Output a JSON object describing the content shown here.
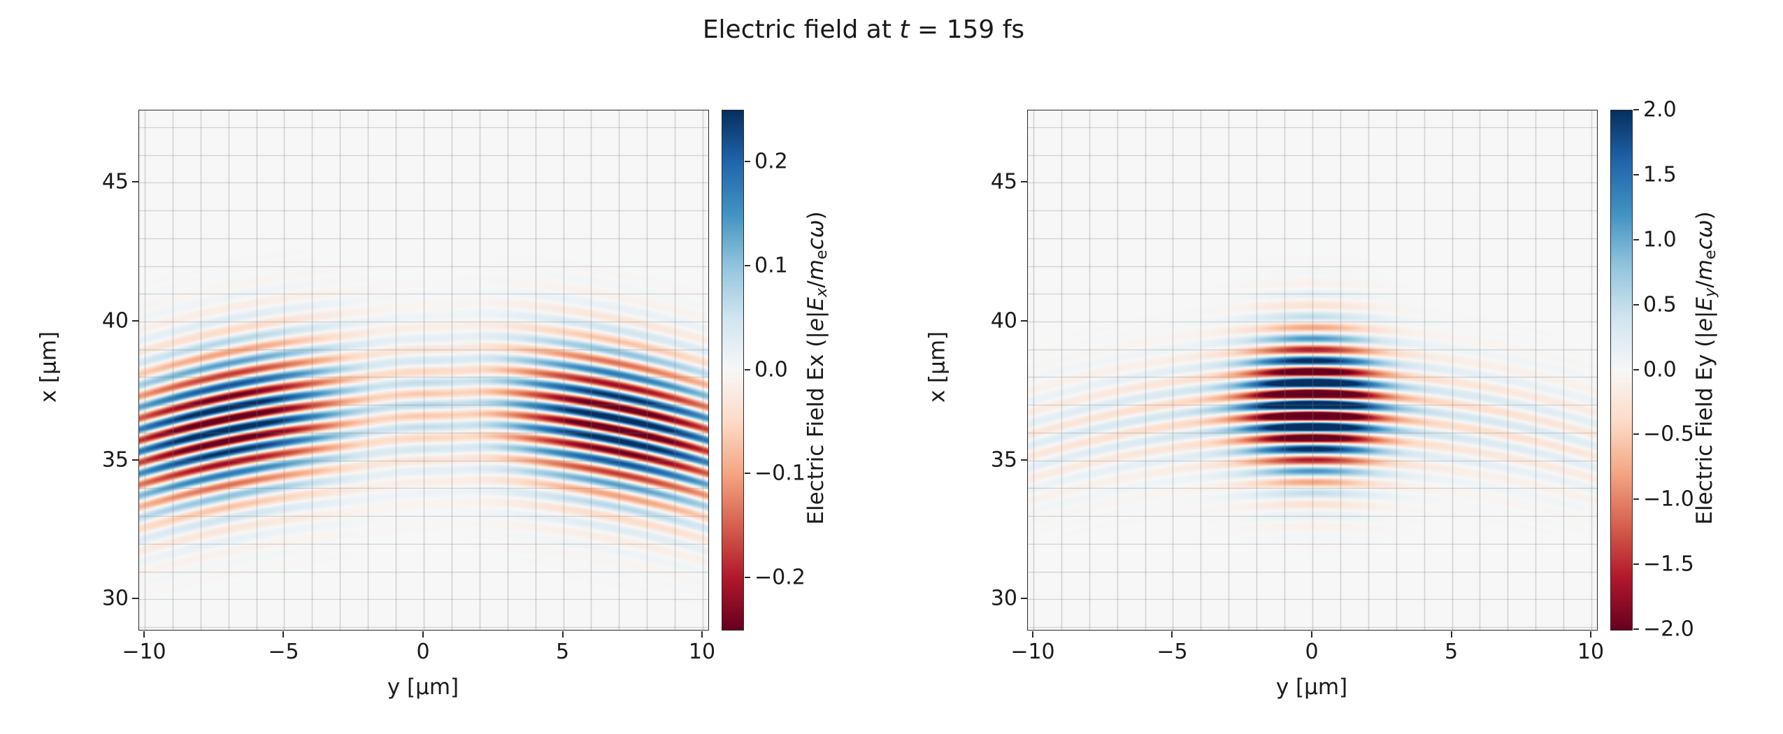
{
  "title": {
    "text": "Electric field at t = 159 fs",
    "time_fs": 159,
    "segments": [
      {
        "t": "Electric field at "
      },
      {
        "t": "t",
        "i": true
      },
      {
        "t": " = 159 fs"
      }
    ]
  },
  "colormap": {
    "name": "RdBu",
    "stops": [
      [
        103,
        0,
        31
      ],
      [
        178,
        24,
        43
      ],
      [
        214,
        96,
        77
      ],
      [
        244,
        165,
        130
      ],
      [
        253,
        219,
        199
      ],
      [
        247,
        247,
        247
      ],
      [
        209,
        229,
        240
      ],
      [
        146,
        197,
        222
      ],
      [
        67,
        147,
        195
      ],
      [
        33,
        102,
        172
      ],
      [
        5,
        48,
        97
      ]
    ]
  },
  "chart_data": [
    {
      "type": "heatmap",
      "name": "Ex",
      "xlabel": "y [μm]",
      "ylabel": "x [μm]",
      "xlim": [
        -10.2,
        10.2
      ],
      "ylim": [
        28.9,
        47.6
      ],
      "xticks": {
        "values": [
          -10,
          -5,
          0,
          5,
          10
        ],
        "labels": [
          "−10",
          "−5",
          "0",
          "5",
          "10"
        ]
      },
      "yticks": {
        "values": [
          30,
          35,
          40,
          45
        ],
        "labels": [
          "30",
          "35",
          "40",
          "45"
        ]
      },
      "grid": {
        "step": 1,
        "color": "rgba(128,128,128,0.4)"
      },
      "colorbar": {
        "vmin": -0.25,
        "vmax": 0.25,
        "ticks": {
          "values": [
            0.2,
            0.1,
            0.0,
            -0.1,
            -0.2
          ],
          "labels": [
            "0.2",
            "0.1",
            "0.0",
            "−0.1",
            "−0.2"
          ]
        },
        "label_text": "Electric Field Ex (|e|Ex/mecω)",
        "label_segments": [
          {
            "t": "Electric Field Ex (|"
          },
          {
            "t": "e",
            "i": true
          },
          {
            "t": "|"
          },
          {
            "t": "E",
            "i": true
          },
          {
            "t": "x",
            "i": true,
            "s": true
          },
          {
            "t": "/"
          },
          {
            "t": "m",
            "i": true
          },
          {
            "t": "e",
            "s": true
          },
          {
            "t": "c",
            "i": true
          },
          {
            "t": "ω",
            "i": true
          },
          {
            "t": ")"
          }
        ]
      },
      "field_model": {
        "component": "Ex",
        "description": "Transverse-gradient (longitudinal) field of focused laser pulse: antisymmetric two-lobe pattern in y, curved wavefronts",
        "lambda": 0.8,
        "xc": 37.0,
        "R": 35,
        "amp": 0.3,
        "tanhW": 2.5,
        "lobeY": 7.0,
        "lobeS": 4.5,
        "envSx": 2.5,
        "cenAmp": 0.07,
        "cenSy": 2.5,
        "cenSx": 2.3
      }
    },
    {
      "type": "heatmap",
      "name": "Ey",
      "xlabel": "y [μm]",
      "ylabel": "x [μm]",
      "xlim": [
        -10.2,
        10.2
      ],
      "ylim": [
        28.9,
        47.6
      ],
      "xticks": {
        "values": [
          -10,
          -5,
          0,
          5,
          10
        ],
        "labels": [
          "−10",
          "−5",
          "0",
          "5",
          "10"
        ]
      },
      "yticks": {
        "values": [
          30,
          35,
          40,
          45
        ],
        "labels": [
          "30",
          "35",
          "40",
          "45"
        ]
      },
      "grid": {
        "step": 1,
        "color": "rgba(128,128,128,0.4)"
      },
      "colorbar": {
        "vmin": -2.0,
        "vmax": 2.0,
        "ticks": {
          "values": [
            2.0,
            1.5,
            1.0,
            0.5,
            0.0,
            -0.5,
            -1.0,
            -1.5,
            -2.0
          ],
          "labels": [
            "2.0",
            "1.5",
            "1.0",
            "0.5",
            "0.0",
            "−0.5",
            "−1.0",
            "−1.5",
            "−2.0"
          ]
        },
        "label_text": "Electric Field Ey (|e|Ey/mecω)",
        "label_segments": [
          {
            "t": "Electric Field Ey (|"
          },
          {
            "t": "e",
            "i": true
          },
          {
            "t": "|"
          },
          {
            "t": "E",
            "i": true
          },
          {
            "t": "y",
            "i": true,
            "s": true
          },
          {
            "t": "/"
          },
          {
            "t": "m",
            "i": true
          },
          {
            "t": "e",
            "s": true
          },
          {
            "t": "c",
            "i": true
          },
          {
            "t": "ω",
            "i": true
          },
          {
            "t": ")"
          }
        ]
      },
      "field_model": {
        "component": "Ey",
        "description": "Main transverse field of focused laser pulse: strong central lobe at y=0 with weaker curved wings, curved wavefronts",
        "lambda": 0.8,
        "xc": 37.0,
        "R": 35,
        "amp": 3.2,
        "coreSy": 2.2,
        "coreSx": 2.3,
        "wingAmp": 0.14,
        "wingSy": 12,
        "wingSx": 1.9
      }
    }
  ]
}
